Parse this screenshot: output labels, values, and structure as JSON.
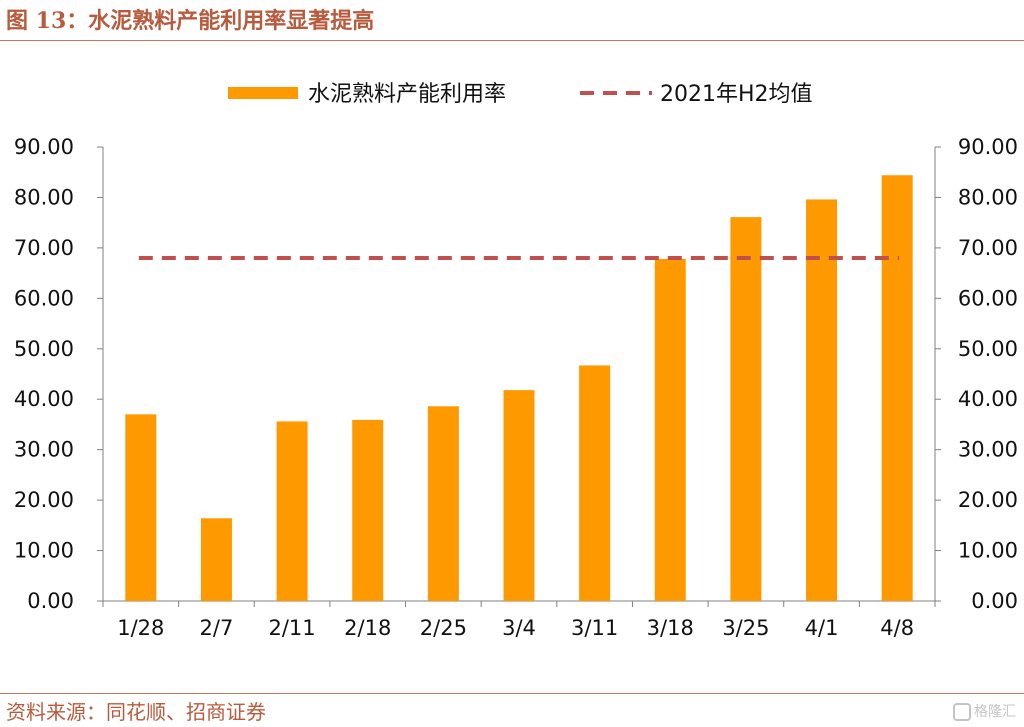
{
  "header": {
    "title": "图 13：水泥熟料产能利用率显著提高"
  },
  "footer": {
    "source": "资料来源：同花顺、招商证券",
    "watermark": "格隆汇"
  },
  "colors": {
    "bar": "#FF9900",
    "reference_line": "#C0504D",
    "title": "#B85A3C"
  },
  "chart_data": {
    "type": "bar",
    "categories": [
      "1/28",
      "2/7",
      "2/11",
      "2/18",
      "2/25",
      "3/4",
      "3/11",
      "3/18",
      "3/25",
      "4/1",
      "4/8"
    ],
    "series": [
      {
        "name": "水泥熟料产能利用率",
        "type": "bar",
        "values": [
          37.0,
          16.4,
          35.6,
          35.9,
          38.6,
          41.8,
          46.7,
          67.8,
          76.1,
          79.6,
          84.4
        ]
      },
      {
        "name": "2021年H2均值",
        "type": "line",
        "style": "dashed",
        "values": [
          68.0,
          68.0,
          68.0,
          68.0,
          68.0,
          68.0,
          68.0,
          68.0,
          68.0,
          68.0,
          68.0
        ]
      }
    ],
    "ylim": [
      0,
      90
    ],
    "y_ticks": [
      "0.00",
      "10.00",
      "20.00",
      "30.00",
      "40.00",
      "50.00",
      "60.00",
      "70.00",
      "80.00",
      "90.00"
    ],
    "y2_ticks": [
      "0.00",
      "10.00",
      "20.00",
      "30.00",
      "40.00",
      "50.00",
      "60.00",
      "70.00",
      "80.00",
      "90.00"
    ],
    "grid": false,
    "legend_position": "top"
  }
}
